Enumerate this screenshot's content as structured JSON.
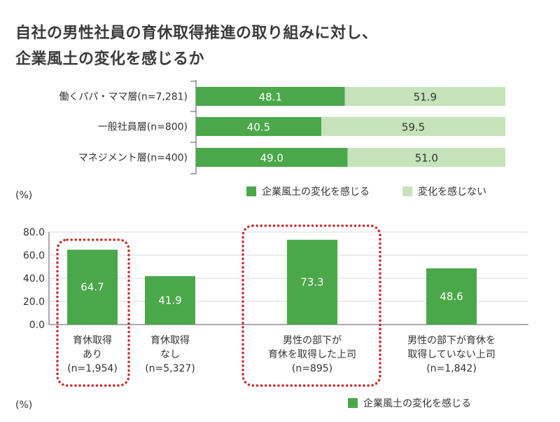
{
  "title_line1": "自社の男性社員の育休取得推進の取り組みに対し、",
  "title_line2": "企業風土の変化を感じるか",
  "colors": {
    "dark": "#4aa84a",
    "light": "#c6e3bb",
    "dotted": "#cc2b2b"
  },
  "chart_data": [
    {
      "type": "bar",
      "orientation": "horizontal",
      "stacked": true,
      "categories": [
        "働くパパ・ママ層(n=7,281)",
        "一般社員層(n=800)",
        "マネジメント層(n=400)"
      ],
      "series": [
        {
          "name": "企業風土の変化を感じる",
          "values": [
            48.1,
            40.5,
            49.0
          ],
          "value_labels": [
            "48.1",
            "40.5",
            "49.0"
          ]
        },
        {
          "name": "変化を感じない",
          "values": [
            51.9,
            59.5,
            51.0
          ],
          "value_labels": [
            "51.9",
            "59.5",
            "51.0"
          ]
        }
      ],
      "unit": "(%)",
      "xlim": [
        0,
        100
      ]
    },
    {
      "type": "bar",
      "categories": [
        [
          "育休取得",
          "あり",
          "(n=1,954)"
        ],
        [
          "育休取得",
          "なし",
          "(n=5,327)"
        ],
        [
          "男性の部下が",
          "育休を取得した上司",
          "(n=895)"
        ],
        [
          "男性の部下が育休を",
          "取得していない上司",
          "(n=1,842)"
        ]
      ],
      "series": [
        {
          "name": "企業風土の変化を感じる",
          "values": [
            64.7,
            41.9,
            73.3,
            48.6
          ],
          "value_labels": [
            "64.7",
            "41.9",
            "73.3",
            "48.6"
          ]
        }
      ],
      "highlighted": [
        0,
        2
      ],
      "unit": "(%)",
      "ylim": [
        0,
        80
      ],
      "yticks": [
        "0.0",
        "20.0",
        "40.0",
        "60.0",
        "80.0"
      ]
    }
  ]
}
